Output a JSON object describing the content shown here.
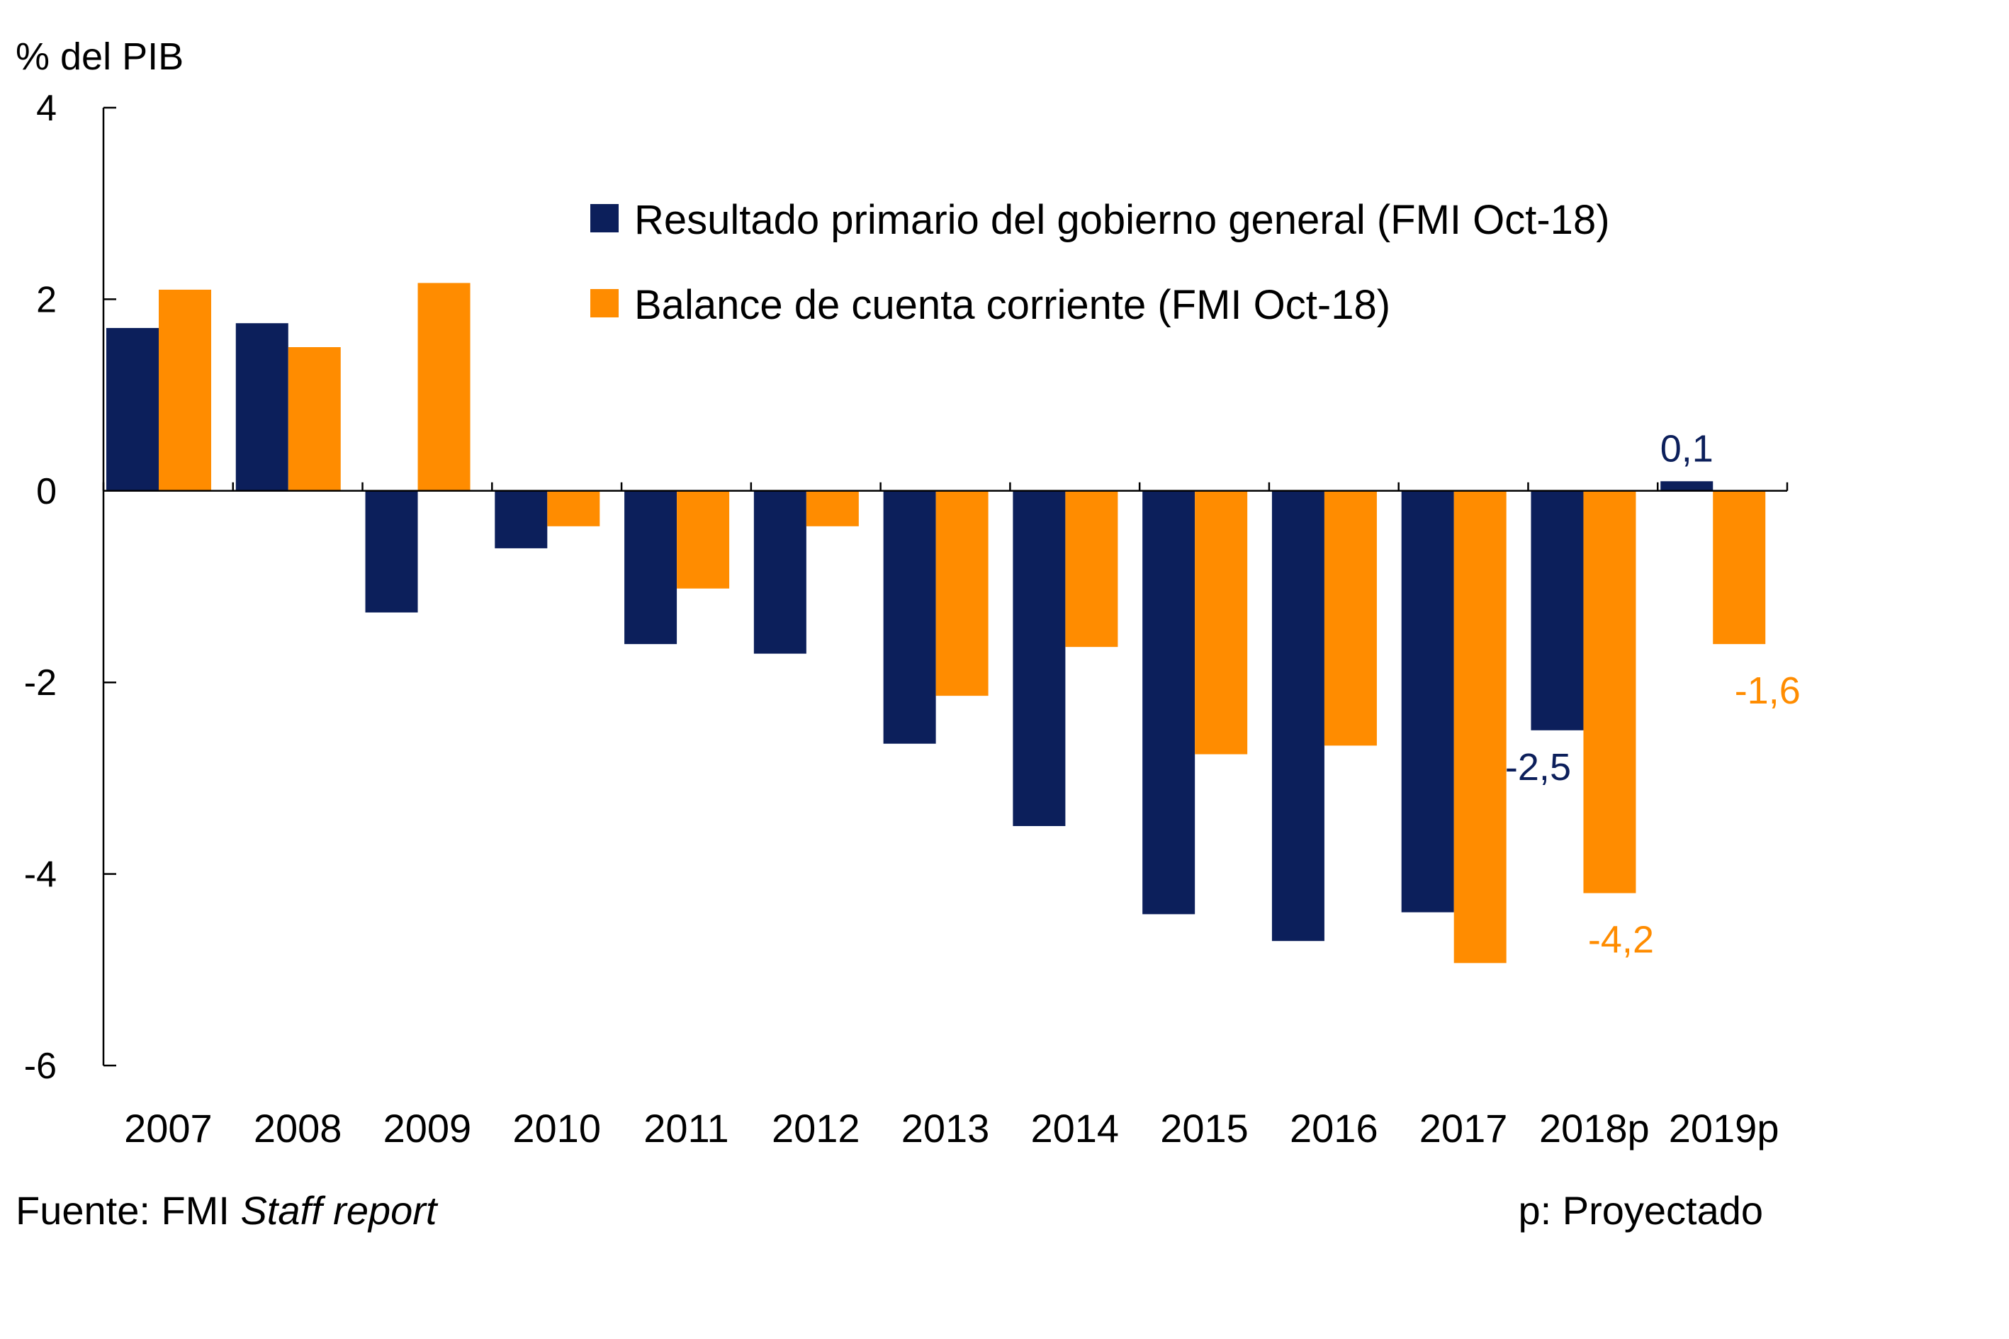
{
  "chart_data": {
    "type": "bar",
    "unit_label": "% del PIB",
    "categories": [
      "2007",
      "2008",
      "2009",
      "2010",
      "2011",
      "2012",
      "2013",
      "2014",
      "2015",
      "2016",
      "2017",
      "2018p",
      "2019p"
    ],
    "series": [
      {
        "name": "Resultado primario del gobierno general (FMI Oct-18)",
        "color": "#0c1f5b",
        "values": [
          1.7,
          1.75,
          -1.27,
          -0.6,
          -1.6,
          -1.7,
          -2.64,
          -3.5,
          -4.42,
          -4.7,
          -4.4,
          -2.5,
          0.1
        ]
      },
      {
        "name": "Balance de cuenta corriente (FMI Oct-18)",
        "color": "#ff8c00",
        "values": [
          2.1,
          1.5,
          2.17,
          -0.37,
          -1.02,
          -0.37,
          -2.14,
          -1.63,
          -2.75,
          -2.66,
          -4.93,
          -4.2,
          -1.6
        ]
      }
    ],
    "data_labels": [
      {
        "series": 0,
        "category": "2018p",
        "text": "-2,5"
      },
      {
        "series": 0,
        "category": "2019p",
        "text": "0,1"
      },
      {
        "series": 1,
        "category": "2018p",
        "text": "-4,2"
      },
      {
        "series": 1,
        "category": "2019p",
        "text": "-1,6"
      }
    ],
    "ylim": [
      -6,
      4
    ],
    "yticks": [
      -6,
      -4,
      -2,
      0,
      2,
      4
    ],
    "ytick_labels": [
      "-6",
      "-4",
      "-2",
      "0",
      "2",
      "4"
    ],
    "legend_position": "top-right",
    "grid": false
  },
  "footer": {
    "source_prefix": "Fuente:",
    "source_org": "FMI",
    "source_italic": "Staff report",
    "note": "p: Proyectado"
  }
}
